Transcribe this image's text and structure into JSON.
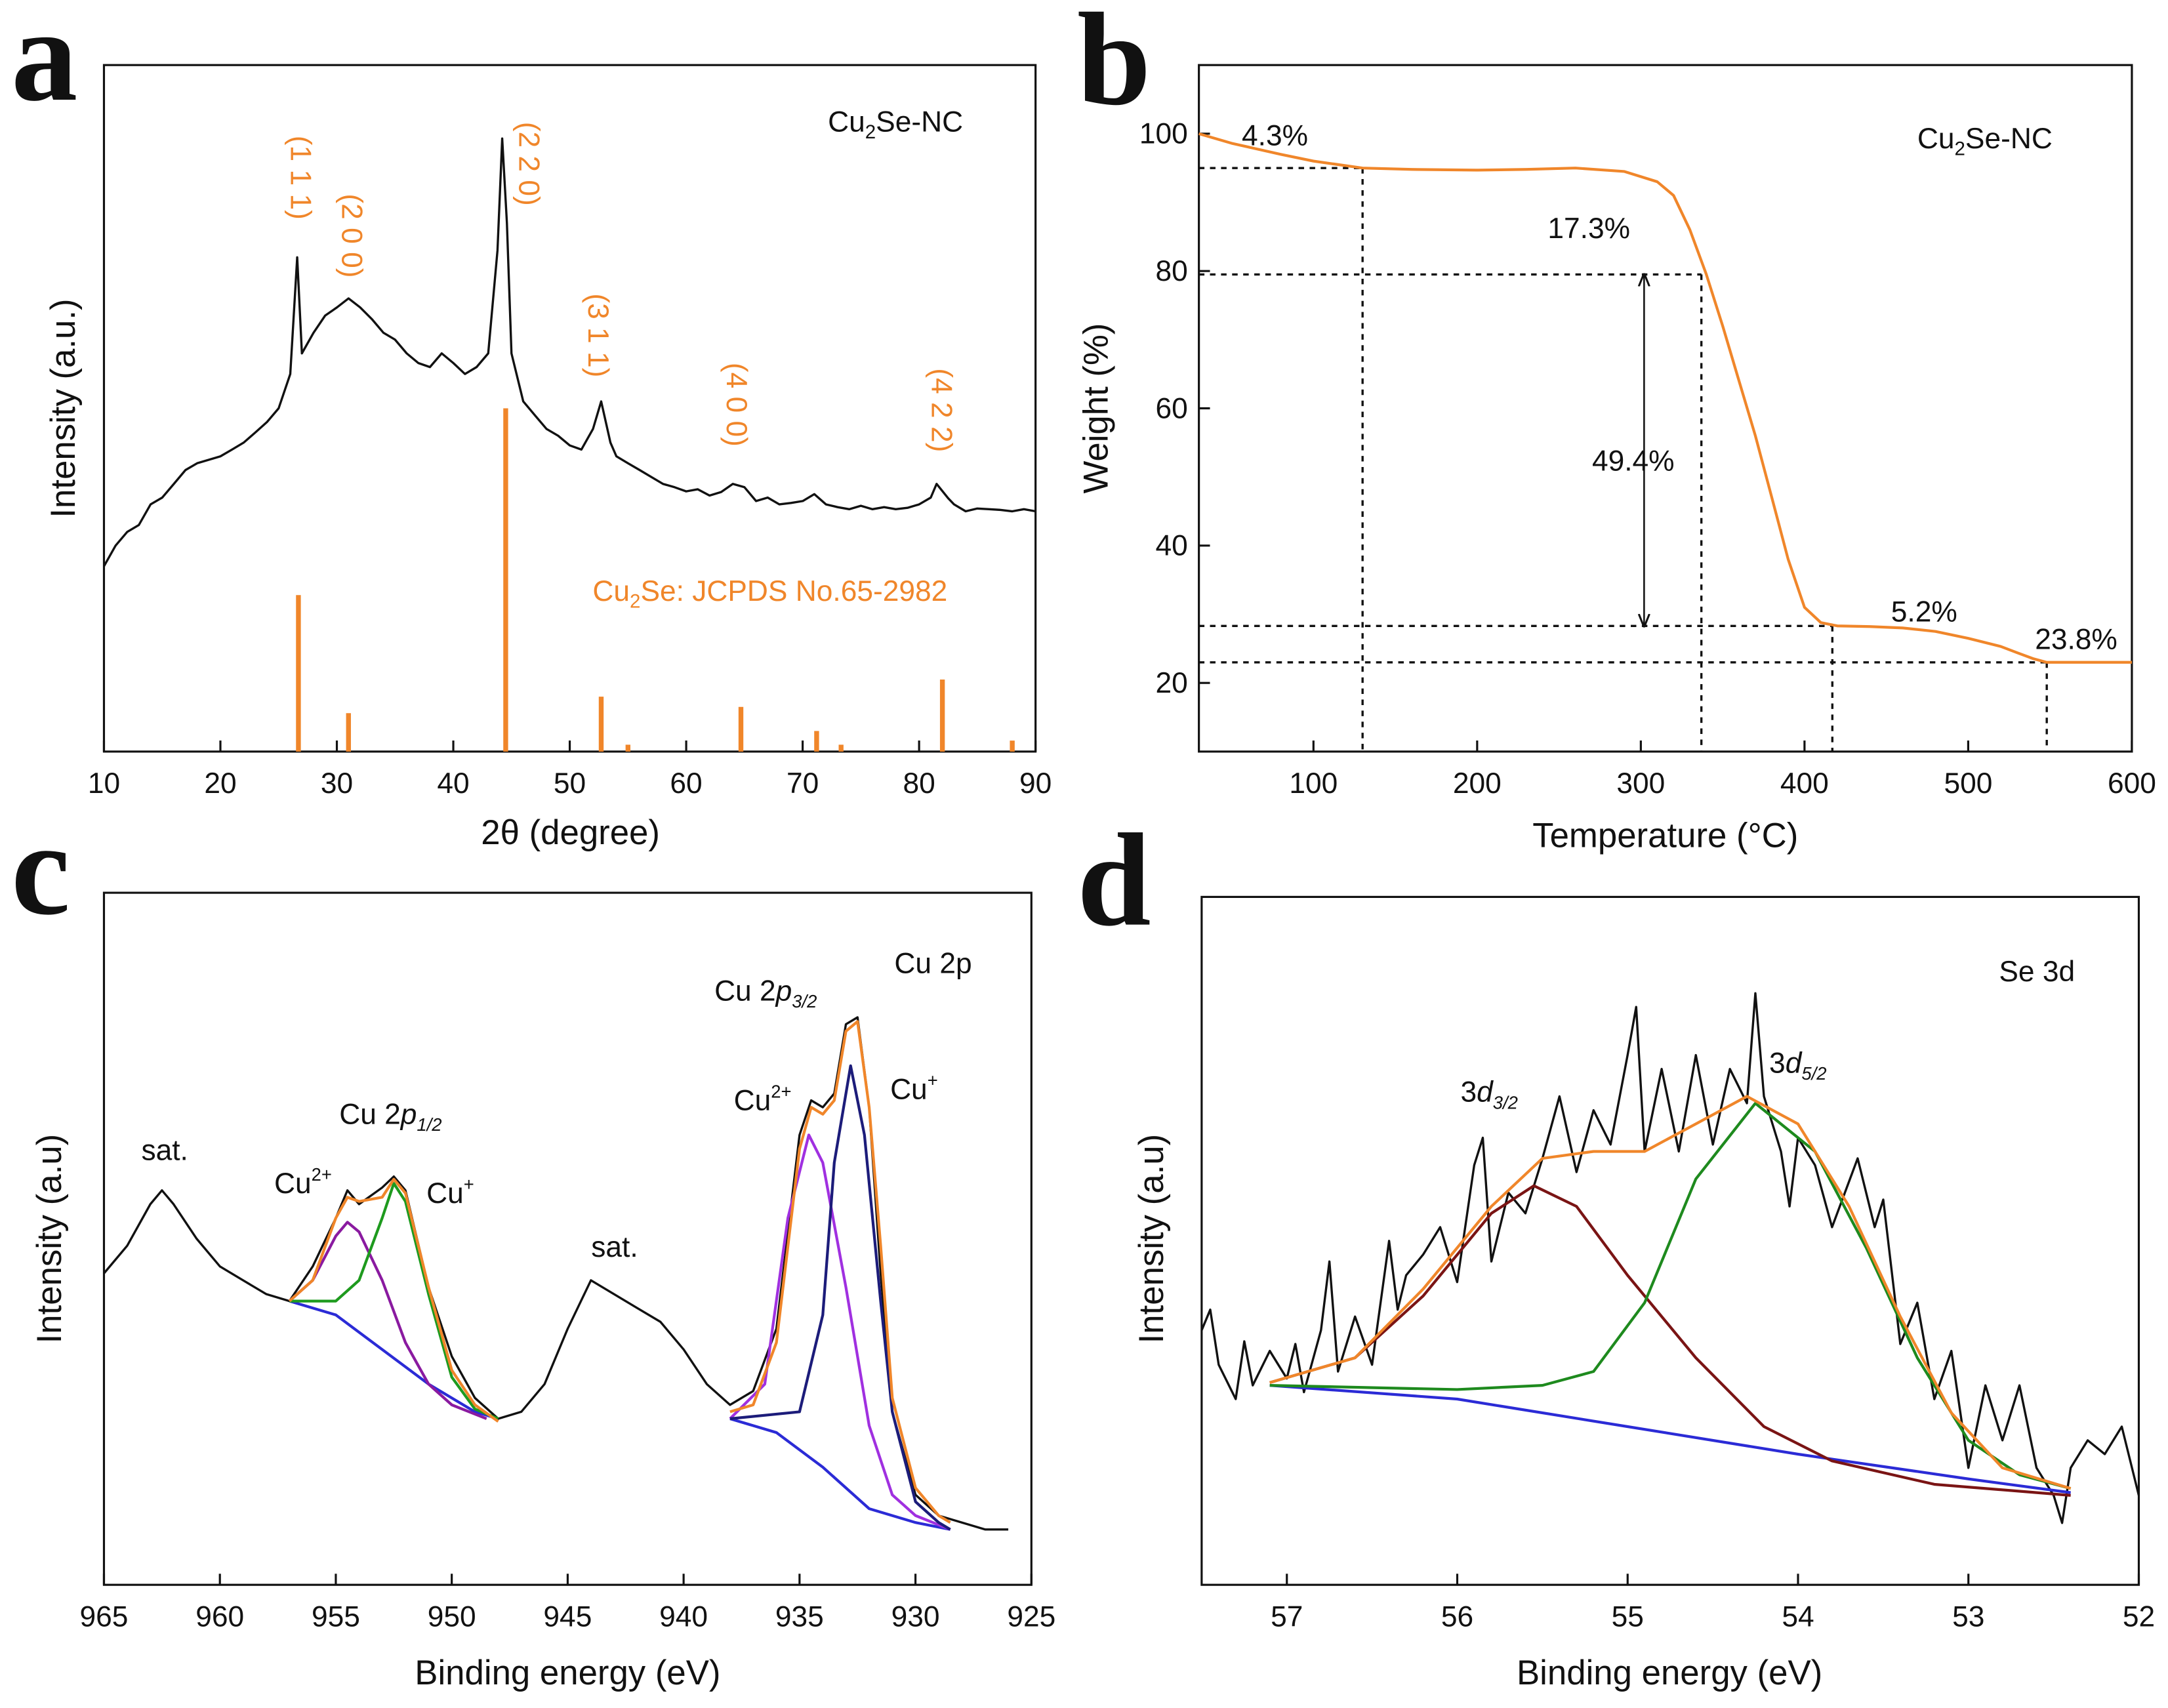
{
  "chart_data": [
    {
      "type": "line",
      "panel": "a",
      "xlabel": "2θ (degree)",
      "ylabel": "Intensity (a.u.)",
      "xlim": [
        10,
        90
      ],
      "ylim": [
        0,
        100
      ],
      "xticks": [
        10,
        20,
        30,
        40,
        50,
        60,
        70,
        80,
        90
      ],
      "sample_label": {
        "text": "Cu",
        "sub": "2",
        "tail": "Se-NC"
      },
      "reference_label": {
        "text": "Cu",
        "sub": "2",
        "tail": "Se: JCPDS No.65-2982"
      },
      "peak_labels": [
        "(1 1 1)",
        "(2 0 0)",
        "(2 2 0)",
        "(3 1 1)",
        "(4 0 0)",
        "(4 2 2)"
      ],
      "series": [
        {
          "color": "#111111",
          "x": [
            10,
            11,
            12,
            13,
            14,
            15,
            16,
            17,
            18,
            19,
            20,
            21,
            22,
            23,
            24,
            25,
            26,
            26.6,
            27,
            28,
            29,
            30,
            31,
            32,
            33,
            34,
            35,
            36,
            37,
            38,
            39,
            40,
            41,
            42,
            43,
            43.8,
            44.2,
            44.6,
            45,
            46,
            47,
            48,
            49,
            50,
            51,
            52,
            52.7,
            53.5,
            54,
            55,
            56,
            57,
            58,
            59,
            60,
            61,
            62,
            63,
            64,
            65,
            66,
            67,
            68,
            69,
            70,
            71,
            72,
            73,
            74,
            75,
            76,
            77,
            78,
            79,
            80,
            81,
            81.5,
            82.5,
            83,
            84,
            85,
            86,
            87,
            88,
            89,
            90
          ],
          "values": [
            27,
            30,
            32,
            33,
            36,
            37,
            39,
            41,
            42,
            42.5,
            43,
            44,
            45,
            46.5,
            48,
            50,
            55,
            72,
            58,
            61,
            63.5,
            64.7,
            66,
            64.7,
            63,
            61,
            60,
            58,
            56.6,
            56,
            58,
            56.6,
            55,
            56,
            58,
            73,
            89.3,
            77,
            58,
            51,
            49,
            47,
            46,
            44.6,
            44,
            47,
            51,
            45,
            43,
            42,
            41,
            40,
            39,
            38.5,
            37.9,
            38.2,
            37.3,
            37.8,
            39,
            38.5,
            36.5,
            37,
            36,
            36.2,
            36.5,
            37.5,
            36,
            35.6,
            35.3,
            35.8,
            35.3,
            35.6,
            35.3,
            35.5,
            36,
            37,
            39,
            36.9,
            36,
            35,
            35.4,
            35.3,
            35.2,
            35,
            35.3,
            35
          ]
        }
      ],
      "sticks": {
        "color": "#f0862a",
        "x": [
          26.7,
          31,
          44.5,
          52.7,
          55,
          64.7,
          71.2,
          73.3,
          82,
          88
        ],
        "values": [
          22.8,
          5.6,
          50,
          8,
          1,
          6.5,
          3,
          1,
          10.5,
          1.6
        ]
      }
    },
    {
      "type": "line",
      "panel": "b",
      "xlabel": "Temperature (°C)",
      "ylabel": "Weight (%)",
      "xlim": [
        30,
        600
      ],
      "ylim": [
        10,
        110
      ],
      "xticks": [
        100,
        200,
        300,
        400,
        500,
        600
      ],
      "yticks": [
        20,
        40,
        60,
        80,
        100
      ],
      "sample_label": {
        "text": "Cu",
        "sub": "2",
        "tail": "Se-NC"
      },
      "annotations": [
        "4.3%",
        "17.3%",
        "49.4%",
        "5.2%",
        "23.8%"
      ],
      "series": [
        {
          "color": "#f0862a",
          "x": [
            30,
            50,
            80,
            100,
            130,
            160,
            200,
            230,
            260,
            290,
            310,
            320,
            330,
            340,
            350,
            360,
            370,
            380,
            390,
            400,
            410,
            420,
            440,
            460,
            480,
            500,
            520,
            530,
            540,
            548,
            560,
            600
          ],
          "values": [
            100,
            98.6,
            97,
            96,
            95,
            94.8,
            94.7,
            94.8,
            95,
            94.5,
            93,
            91,
            86,
            79.5,
            72,
            64,
            56,
            47,
            38,
            31,
            28.8,
            28.3,
            28.2,
            28,
            27.5,
            26.5,
            25.3,
            24.4,
            23.5,
            23,
            23,
            23
          ]
        }
      ],
      "reference_lines": [
        {
          "x": 130,
          "y": 95
        },
        {
          "x": 337,
          "y": 79.5
        },
        {
          "x": 417,
          "y": 28.3
        },
        {
          "x": 548,
          "y": 23
        }
      ],
      "arrow": {
        "x": 302,
        "y": [
          79.5,
          28.3
        ]
      }
    },
    {
      "type": "line",
      "panel": "c",
      "xlabel": "Binding energy (eV)",
      "ylabel": "Intensity (a.u)",
      "xlim": [
        965,
        925
      ],
      "ylim": [
        0,
        100
      ],
      "xticks": [
        965,
        960,
        955,
        950,
        945,
        940,
        935,
        930,
        925
      ],
      "annotations": {
        "region": "Cu 2p",
        "p32": {
          "text": "Cu 2",
          "it": "p",
          "sub": "3/2"
        },
        "p12": {
          "text": "Cu 2",
          "it": "p",
          "sub": "1/2"
        },
        "cu2_a": {
          "text": "Cu",
          "sup": "2+"
        },
        "cu1_a": {
          "text": "Cu",
          "sup": "+"
        },
        "cu2_b": {
          "text": "Cu",
          "sup": "2+"
        },
        "cu1_b": {
          "text": "Cu",
          "sup": "+"
        },
        "sat_a": "sat.",
        "sat_b": "sat."
      },
      "series": [
        {
          "color": "#111111",
          "x": [
            965,
            964,
            963,
            962.5,
            962,
            961,
            960,
            959,
            958,
            957,
            956,
            955,
            954.5,
            954,
            953,
            952.5,
            952,
            951,
            950,
            949,
            948,
            947,
            946,
            945,
            944,
            943,
            942,
            941,
            940,
            939,
            938,
            937,
            936,
            935,
            934.5,
            934,
            933.5,
            933,
            932.5,
            932,
            931.5,
            931,
            930,
            929,
            928,
            927,
            926
          ],
          "values": [
            45,
            49,
            55,
            57,
            55,
            50,
            46,
            44,
            42,
            41,
            46,
            53,
            57,
            55,
            57.4,
            59,
            57,
            43,
            33,
            27,
            24,
            25,
            29,
            37,
            44,
            42,
            40,
            38,
            34,
            29,
            26,
            28,
            37,
            65,
            70,
            69,
            71,
            81,
            82,
            69,
            45,
            25,
            13,
            10,
            9,
            8,
            8
          ]
        },
        {
          "color": "#2b2bd6",
          "x": [
            957,
            955,
            953,
            951,
            949,
            948
          ],
          "values": [
            41,
            39,
            34,
            29,
            25,
            24
          ]
        },
        {
          "color": "#2b2bd6",
          "x": [
            938,
            936,
            934,
            932,
            930,
            928.5
          ],
          "values": [
            24,
            22,
            17,
            11,
            9,
            8
          ]
        },
        {
          "color": "#8a1aa0",
          "x": [
            957,
            956,
            955,
            954.5,
            954,
            953,
            952,
            951,
            950,
            948.5
          ],
          "values": [
            41,
            44,
            50.4,
            52.4,
            51,
            44,
            35,
            29,
            26,
            24
          ]
        },
        {
          "color": "#1e9a1e",
          "x": [
            957,
            955,
            954,
            953,
            952.5,
            952,
            951,
            950,
            949,
            948
          ],
          "values": [
            41,
            41,
            44,
            53,
            58,
            55.4,
            42,
            30,
            25.4,
            24
          ]
        },
        {
          "color": "#a030e0",
          "x": [
            938,
            936.5,
            935.5,
            934.6,
            934,
            933,
            932,
            931,
            930,
            928.5
          ],
          "values": [
            24,
            29,
            53,
            65,
            61,
            43,
            23,
            13,
            10,
            8
          ]
        },
        {
          "color": "#1c1c7a",
          "x": [
            938,
            935,
            934,
            933.5,
            932.8,
            932.2,
            931.5,
            931,
            930,
            929,
            928.5
          ],
          "values": [
            24,
            25,
            39,
            61,
            75,
            65,
            41,
            25,
            12,
            9,
            8
          ]
        },
        {
          "color": "#f0862a",
          "x": [
            957,
            956,
            955,
            954.5,
            954,
            953,
            952.5,
            952,
            951,
            950,
            949,
            948
          ],
          "values": [
            41,
            44,
            53,
            56,
            55.4,
            56,
            58.6,
            56.6,
            43,
            31,
            26,
            23.6
          ]
        },
        {
          "color": "#f0862a",
          "x": [
            938,
            937,
            936,
            935,
            934.5,
            934,
            933.5,
            933,
            932.5,
            932,
            931.5,
            931,
            930,
            929,
            928.5
          ],
          "values": [
            25,
            26,
            35,
            63,
            69,
            68,
            70,
            80,
            81.4,
            69,
            49,
            27,
            14,
            10,
            9
          ]
        }
      ]
    },
    {
      "type": "line",
      "panel": "d",
      "xlabel": "Binding energy (eV)",
      "ylabel": "Intensity (a.u)",
      "xlim": [
        57.5,
        52
      ],
      "ylim": [
        0,
        100
      ],
      "xticks": [
        57,
        56,
        55,
        54,
        53,
        52
      ],
      "annotations": {
        "region": "Se 3d",
        "d32": {
          "text": "3",
          "it": "d",
          "sub": "3/2"
        },
        "d52": {
          "text": "3",
          "it": "d",
          "sub": "5/2"
        }
      },
      "series": [
        {
          "color": "#111111",
          "x": [
            57.5,
            57.45,
            57.4,
            57.3,
            57.25,
            57.2,
            57.1,
            57.0,
            56.95,
            56.9,
            56.8,
            56.75,
            56.7,
            56.6,
            56.5,
            56.4,
            56.35,
            56.3,
            56.2,
            56.1,
            56.0,
            55.9,
            55.85,
            55.8,
            55.7,
            55.6,
            55.5,
            55.4,
            55.3,
            55.2,
            55.1,
            55.0,
            54.95,
            54.9,
            54.8,
            54.7,
            54.6,
            54.5,
            54.4,
            54.3,
            54.25,
            54.2,
            54.1,
            54.05,
            54.0,
            53.9,
            53.8,
            53.65,
            53.55,
            53.5,
            53.4,
            53.3,
            53.2,
            53.1,
            53.0,
            52.9,
            52.8,
            52.7,
            52.6,
            52.5,
            52.45,
            52.4,
            52.3,
            52.2,
            52.1,
            52.0
          ],
          "values": [
            37,
            40,
            32,
            27,
            35.4,
            29,
            34,
            30,
            35,
            28,
            37,
            47,
            31,
            39,
            32,
            50,
            40,
            45,
            48,
            52,
            44,
            61,
            65,
            47,
            57,
            54,
            62,
            71,
            60,
            69,
            64,
            77,
            84,
            63,
            75,
            63,
            77,
            64,
            75,
            70,
            86,
            71,
            63,
            55,
            65,
            61,
            52,
            62,
            52,
            56,
            35,
            41,
            27,
            34,
            17,
            29,
            21,
            29,
            17,
            13,
            9,
            17,
            21,
            19,
            23,
            13
          ]
        },
        {
          "color": "#2b2bd6",
          "x": [
            57.1,
            56,
            55,
            54,
            53,
            52.4
          ],
          "values": [
            29,
            27,
            23,
            19,
            15.4,
            13.4
          ]
        },
        {
          "color": "#7a1414",
          "x": [
            57.1,
            56.6,
            56.2,
            55.8,
            55.55,
            55.3,
            55.0,
            54.6,
            54.2,
            53.8,
            53.2,
            52.4
          ],
          "values": [
            29.4,
            33,
            42,
            54,
            58,
            55,
            45,
            33,
            23,
            18,
            14.6,
            13
          ]
        },
        {
          "color": "#1e8a1e",
          "x": [
            57.1,
            56.0,
            55.5,
            55.2,
            54.9,
            54.6,
            54.25,
            53.9,
            53.6,
            53.3,
            53.0,
            52.7,
            52.4
          ],
          "values": [
            29,
            28.4,
            29,
            31,
            41,
            59,
            70,
            63,
            49,
            33,
            21,
            16,
            14
          ]
        },
        {
          "color": "#f0862a",
          "x": [
            57.1,
            56.6,
            56.2,
            55.8,
            55.5,
            55.2,
            54.9,
            54.6,
            54.3,
            54.0,
            53.7,
            53.4,
            53.1,
            52.8,
            52.4
          ],
          "values": [
            29.4,
            33,
            43,
            55,
            62,
            63,
            63,
            67,
            71,
            67,
            55,
            39,
            25,
            17,
            14
          ]
        }
      ]
    }
  ]
}
